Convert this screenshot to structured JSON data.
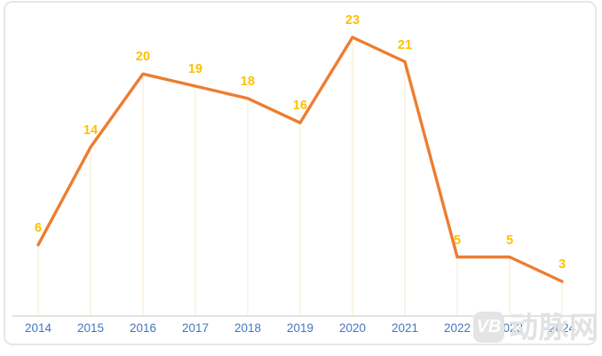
{
  "chart_data": {
    "type": "line",
    "x": [
      "2014",
      "2015",
      "2016",
      "2017",
      "2018",
      "2019",
      "2020",
      "2021",
      "2022",
      "2023",
      "2024"
    ],
    "values": [
      6,
      14,
      20,
      19,
      18,
      16,
      23,
      21,
      5,
      5,
      3
    ],
    "title": "",
    "xlabel": "",
    "ylabel": "",
    "ylim": [
      0,
      26
    ],
    "grid": "vertical-droplines-only",
    "legend": null,
    "data_labels_shown": true,
    "colors": {
      "line": "#ED7D31",
      "data_label": "#FFC000",
      "x_axis_label": "#4576BE",
      "dropline": "#F7E9CC",
      "axis_line": "#D9D9D9",
      "frame_border": "#E6E6E6"
    }
  },
  "watermark": {
    "badge": "VB",
    "text": "动脉网"
  }
}
